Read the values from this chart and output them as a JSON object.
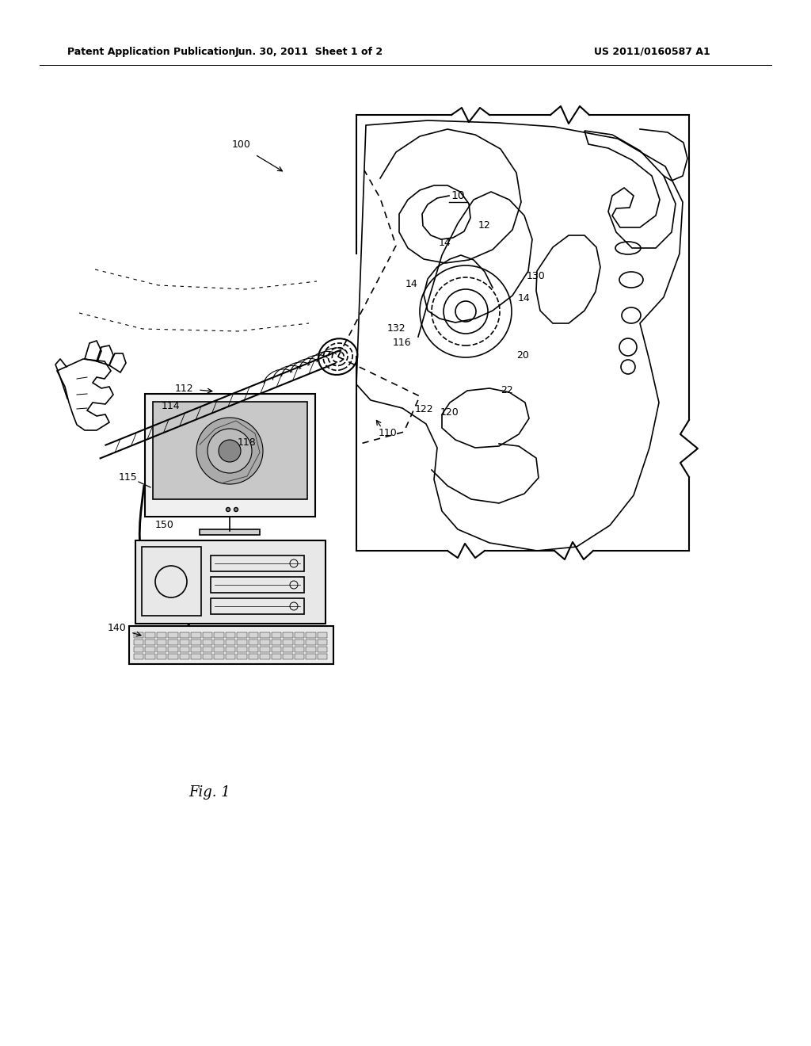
{
  "bg_color": "#ffffff",
  "header_left": "Patent Application Publication",
  "header_mid": "Jun. 30, 2011  Sheet 1 of 2",
  "header_right": "US 2011/0160587 A1",
  "fig_label": "Fig. 1"
}
